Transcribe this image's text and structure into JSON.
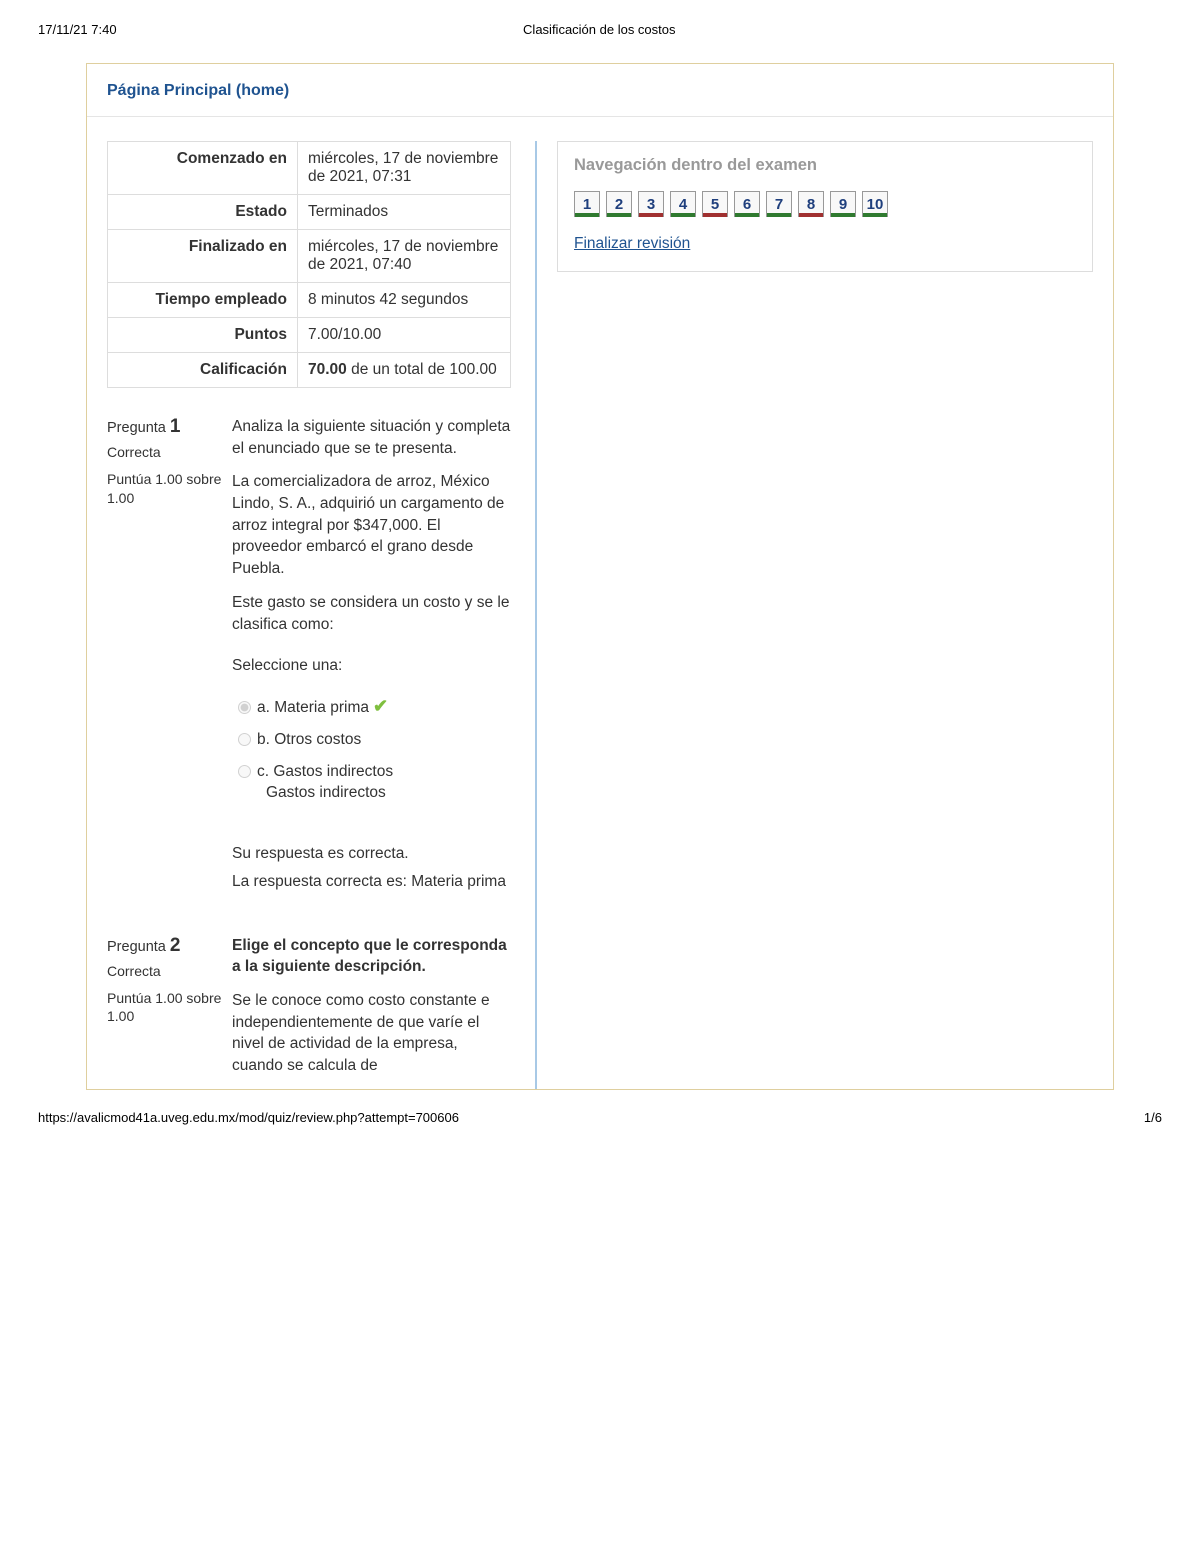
{
  "print": {
    "datetime": "17/11/21 7:40",
    "doc_title": "Clasificación de los costos",
    "footer_url": "https://avalicmod41a.uveg.edu.mx/mod/quiz/review.php?attempt=700606",
    "page_indicator": "1/6"
  },
  "home_link": "Página Principal (home)",
  "summary": {
    "rows": [
      {
        "label": "Comenzado en",
        "value": "miércoles, 17 de noviembre de 2021, 07:31"
      },
      {
        "label": "Estado",
        "value": "Terminados"
      },
      {
        "label": "Finalizado en",
        "value": "miércoles, 17 de noviembre de 2021, 07:40"
      },
      {
        "label": "Tiempo empleado",
        "value": "8 minutos 42 segundos"
      },
      {
        "label": "Puntos",
        "value": "7.00/10.00"
      },
      {
        "label": "Calificación",
        "value_bold": "70.00",
        "value_rest": " de un total de 100.00"
      }
    ]
  },
  "questions": [
    {
      "num": "1",
      "title_prefix": "Pregunta ",
      "state": "Correcta",
      "points": "Puntúa 1.00 sobre 1.00",
      "para1": "Analiza la siguiente situación y completa el enunciado que se te presenta.",
      "para2": "La comercializadora de arroz, México Lindo, S. A., adquirió un cargamento de arroz integral por $347,000. El proveedor embarcó el grano desde Puebla.",
      "para3": "Este gasto se considera un costo y se le clasifica como:",
      "prompt": "Seleccione una:",
      "answers": [
        {
          "label": "a. Materia prima",
          "selected": true,
          "correct_mark": true
        },
        {
          "label": "b. Otros costos",
          "selected": false
        },
        {
          "label": "c. Gastos indirectos",
          "sub": "Gastos indirectos",
          "selected": false
        }
      ],
      "feedback1": "Su respuesta es correcta.",
      "feedback2": "La respuesta correcta es: Materia prima"
    },
    {
      "num": "2",
      "title_prefix": "Pregunta ",
      "state": "Correcta",
      "points": "Puntúa 1.00 sobre 1.00",
      "bold_para": "Elige el concepto que le corresponda a la siguiente descripción.",
      "para2": "Se le conoce como costo constante e independientemente de que varíe el nivel de actividad de la empresa, cuando se calcula de"
    }
  ],
  "nav": {
    "title": "Navegación dentro del examen",
    "cells": [
      {
        "n": "1",
        "status": "correct"
      },
      {
        "n": "2",
        "status": "correct"
      },
      {
        "n": "3",
        "status": "wrong"
      },
      {
        "n": "4",
        "status": "correct"
      },
      {
        "n": "5",
        "status": "wrong"
      },
      {
        "n": "6",
        "status": "correct"
      },
      {
        "n": "7",
        "status": "correct"
      },
      {
        "n": "8",
        "status": "wrong"
      },
      {
        "n": "9",
        "status": "correct"
      },
      {
        "n": "10",
        "status": "correct"
      }
    ],
    "finish": "Finalizar revisión"
  }
}
